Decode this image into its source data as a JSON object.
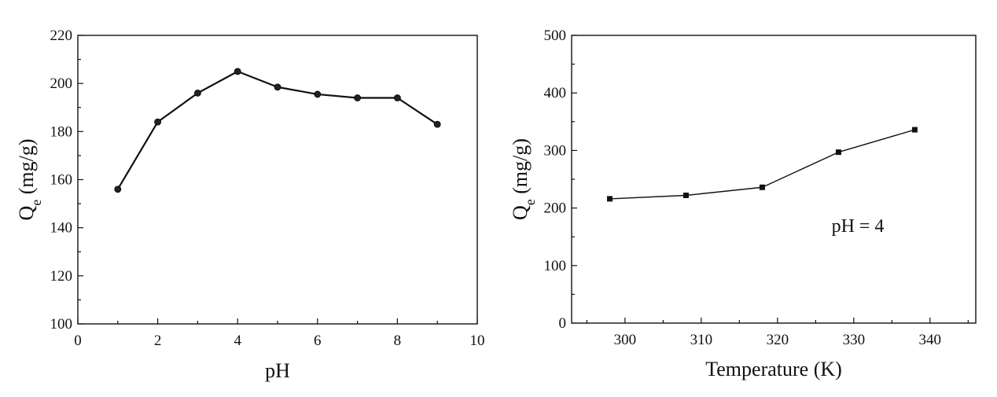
{
  "chart_data": [
    {
      "type": "line",
      "xlabel": "pH",
      "ylabel_main": "Q",
      "ylabel_sub": "e",
      "ylabel_unit": " (mg/g)",
      "xlim": [
        0,
        10
      ],
      "ylim": [
        100,
        220
      ],
      "xticks": [
        0,
        2,
        4,
        6,
        8,
        10
      ],
      "yticks": [
        100,
        120,
        140,
        160,
        180,
        200,
        220
      ],
      "marker": "circle",
      "series": [
        {
          "x": [
            1,
            2,
            3,
            4,
            5,
            6,
            7,
            8,
            9
          ],
          "y": [
            156,
            184,
            196,
            205,
            198.5,
            195.5,
            194,
            194,
            183
          ]
        }
      ]
    },
    {
      "type": "line",
      "xlabel": "Temperature (K)",
      "ylabel_main": "Q",
      "ylabel_sub": "e",
      "ylabel_unit": " (mg/g)",
      "xlim": [
        293,
        346
      ],
      "ylim": [
        0,
        500
      ],
      "xticks": [
        300,
        310,
        320,
        330,
        340
      ],
      "yticks": [
        0,
        100,
        200,
        300,
        400,
        500
      ],
      "marker": "square",
      "annotation": "pH = 4",
      "series": [
        {
          "x": [
            298,
            308,
            318,
            328,
            338
          ],
          "y": [
            216,
            222,
            236,
            297,
            336
          ]
        }
      ]
    }
  ]
}
